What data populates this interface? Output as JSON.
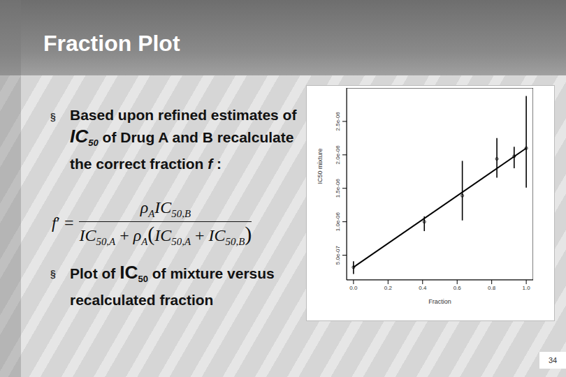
{
  "slide": {
    "title": "Fraction Plot",
    "bullet": "§",
    "bullets": [
      [
        {
          "t": "Based upon refined estimates of "
        },
        {
          "t": "IC",
          "i": true,
          "big": true
        },
        {
          "t": "50",
          "sub": true,
          "i": true
        },
        {
          "t": " of Drug A and B recalculate the correct fraction "
        },
        {
          "t": "f",
          "i": true
        },
        {
          "t": " :"
        }
      ],
      [
        {
          "t": "Plot of "
        },
        {
          "t": "IC",
          "big": true
        },
        {
          "t": "50",
          "sub": true
        },
        {
          "t": " of mixture versus recalculated fraction"
        }
      ]
    ],
    "formula": {
      "lhs": [
        {
          "t": "f",
          "i": true
        },
        {
          "t": "′ ="
        }
      ],
      "numerator": [
        {
          "t": "ρ",
          "i": true
        },
        {
          "t": "A",
          "sub": true,
          "i": true
        },
        {
          "t": "IC",
          "i": true
        },
        {
          "t": "50,B",
          "sub": true,
          "i": true
        }
      ],
      "denominator": [
        {
          "t": "IC",
          "i": true
        },
        {
          "t": "50,A",
          "sub": true,
          "i": true
        },
        {
          "t": " + "
        },
        {
          "t": "ρ",
          "i": true
        },
        {
          "t": "A",
          "sub": true,
          "i": true
        },
        {
          "t": "(",
          "big": true
        },
        {
          "t": "IC",
          "i": true
        },
        {
          "t": "50,A",
          "sub": true,
          "i": true
        },
        {
          "t": " + "
        },
        {
          "t": "IC",
          "i": true
        },
        {
          "t": "50,B",
          "sub": true,
          "i": true
        },
        {
          "t": ")",
          "big": true
        }
      ]
    },
    "page": "34"
  },
  "chart_data": {
    "type": "scatter",
    "x_label": "Fraction",
    "y_label": "IC50 mixture",
    "xlim": [
      -0.04,
      1.04
    ],
    "xticks": [
      {
        "value": 0,
        "label": "0.0"
      },
      {
        "value": 0.2,
        "label": "0.2"
      },
      {
        "value": 0.4,
        "label": "0.4"
      },
      {
        "value": 0.6,
        "label": "0.6"
      },
      {
        "value": 0.8,
        "label": "0.8"
      },
      {
        "value": 1,
        "label": "1.0"
      }
    ],
    "ylim": [
      1.3e-07,
      3e-06
    ],
    "yticks": [
      {
        "value": 5e-07,
        "label": "5.0e-07"
      },
      {
        "value": 1e-06,
        "label": "1.0e-06"
      },
      {
        "value": 1.5e-06,
        "label": "1.5e-06"
      },
      {
        "value": 2e-06,
        "label": "2.0e-06"
      },
      {
        "value": 2.5e-06,
        "label": "2.5e-06"
      }
    ],
    "x": [
      0,
      0.41,
      0.63,
      0.83,
      0.93,
      1.0
    ],
    "values": [
      3.2e-07,
      1e-06,
      1.39e-06,
      1.94e-06,
      1.98e-06,
      2.1e-06
    ],
    "error_low": [
      2.2e-07,
      8.6e-07,
      1.02e-06,
      1.66e-06,
      1.8e-06,
      1.51e-06
    ],
    "error_high": [
      4.1e-07,
      1.08e-06,
      1.91e-06,
      2.25e-06,
      2.12e-06,
      2.88e-06
    ],
    "fit_line": {
      "x": [
        0,
        1
      ],
      "values": [
        3.2e-07,
        2.1e-06
      ]
    },
    "color": "#000000",
    "marker": "circle",
    "grid": false
  }
}
